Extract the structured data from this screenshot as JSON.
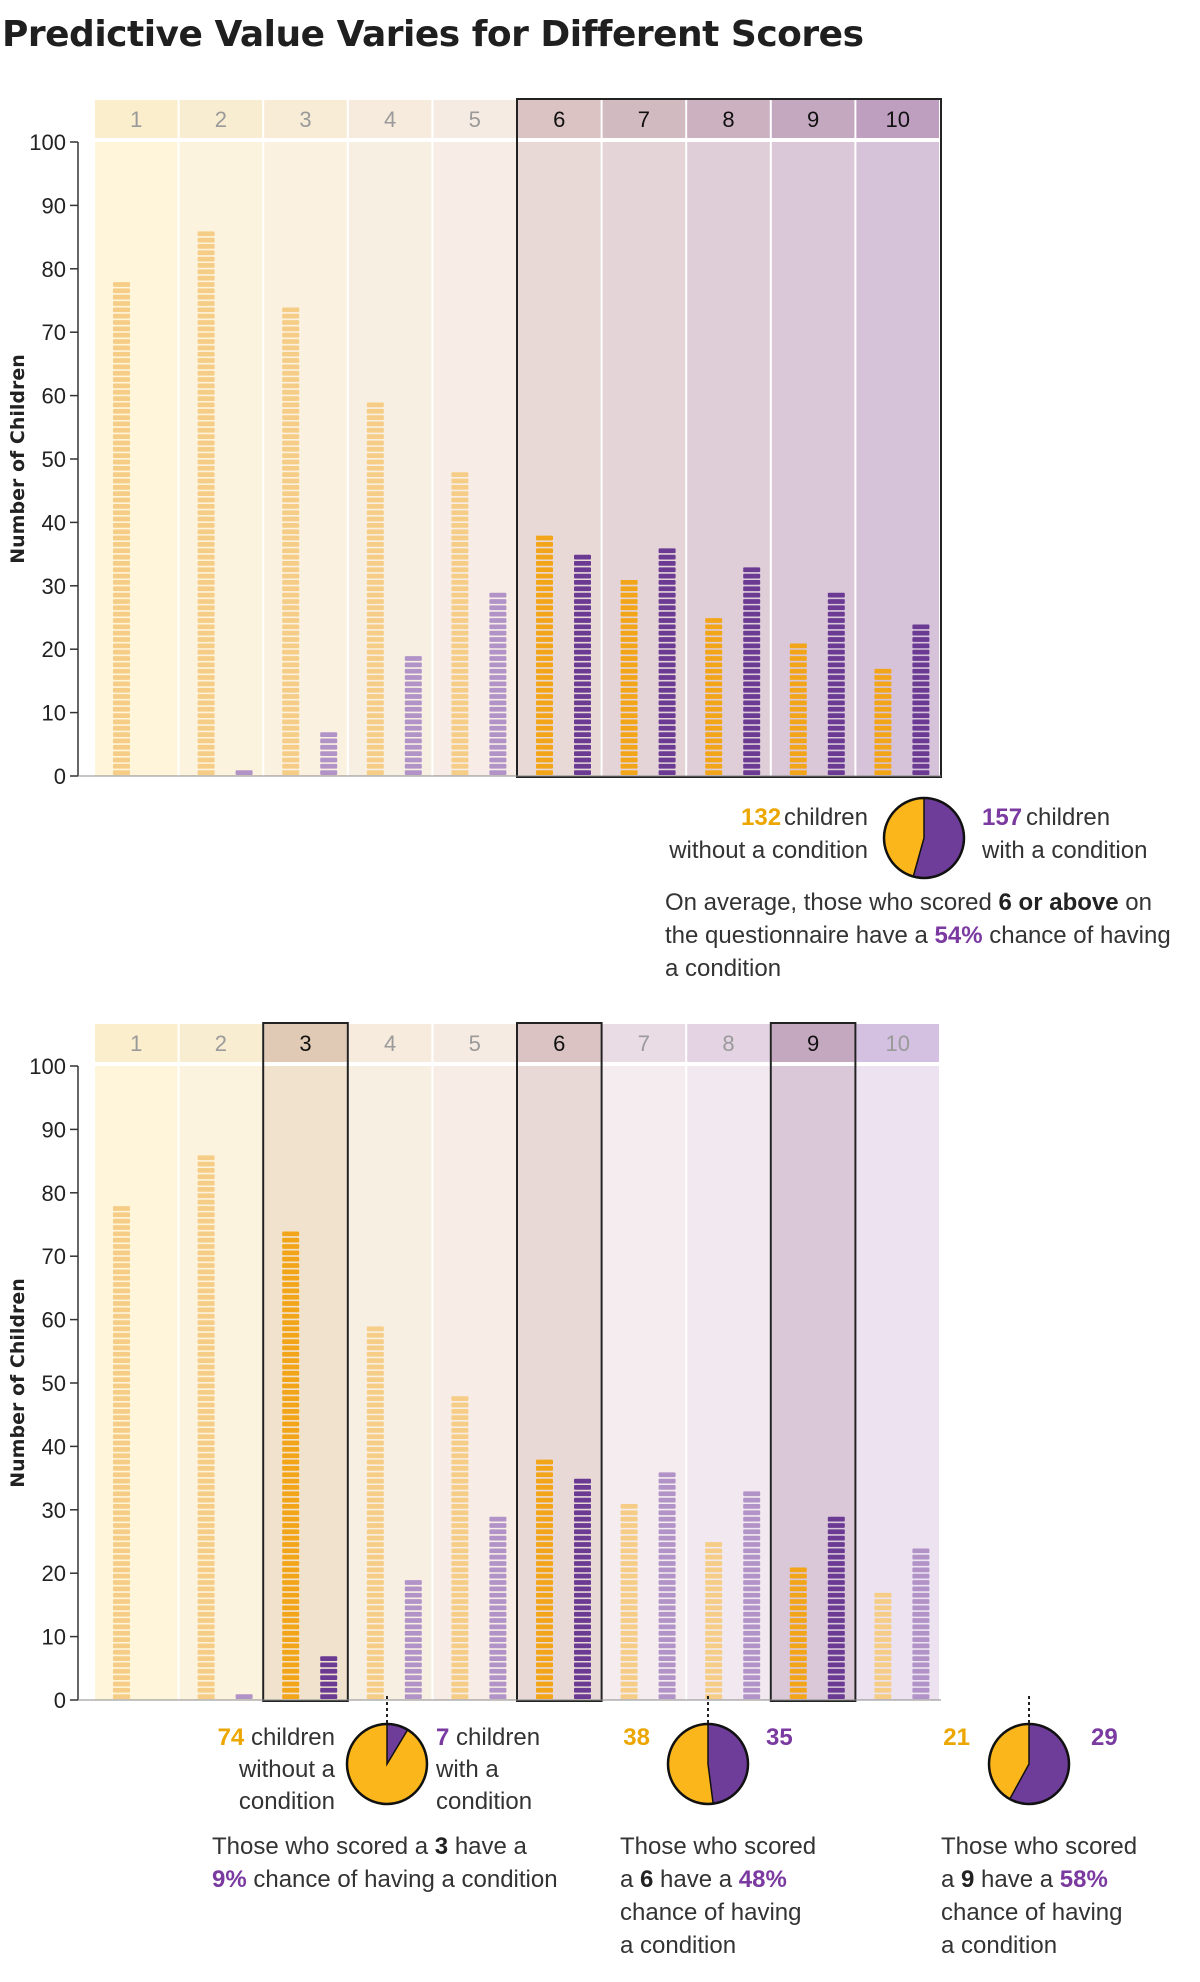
{
  "title": "Predictive Value Varies for Different Scores",
  "colors": {
    "without": "#f3a51a",
    "without_faded": "#f6cd86",
    "with": "#6b3a93",
    "with_faded": "#b293c8",
    "accent_orange": "#eba600",
    "accent_purple": "#7a3aa0",
    "pie_orange": "#fbb61b",
    "pie_purple": "#6e3d9a"
  },
  "chart_data": [
    {
      "type": "bar",
      "title": "",
      "xlabel": "",
      "ylabel": "Number of Children",
      "ylim": [
        0,
        100
      ],
      "yticks": [
        "0",
        "10",
        "20",
        "30",
        "40",
        "50",
        "60",
        "70",
        "80",
        "90",
        "100"
      ],
      "categories": [
        "1",
        "2",
        "3",
        "4",
        "5",
        "6",
        "7",
        "8",
        "9",
        "10"
      ],
      "series": [
        {
          "key": "without",
          "values": [
            78,
            86,
            74,
            59,
            48,
            38,
            31,
            25,
            21,
            17
          ]
        },
        {
          "key": "with",
          "values": [
            0,
            1,
            7,
            19,
            29,
            35,
            36,
            33,
            29,
            24
          ]
        }
      ],
      "highlighted": [
        "6",
        "7",
        "8",
        "9",
        "10"
      ],
      "annotation": {
        "without_count": "132",
        "without_text_1": "children",
        "without_text_2": "without a condition",
        "with_count": "157",
        "with_text_1": "children",
        "with_text_2": "with a condition",
        "without_share": 132,
        "with_share": 157,
        "summary_1a": "On average, those who scored ",
        "summary_1b": "6 or above",
        "summary_1c": " on",
        "summary_2a": "the questionnaire have a ",
        "summary_2b": "54%",
        "summary_2c": " chance of having",
        "summary_3": "a condition"
      }
    },
    {
      "type": "bar",
      "title": "",
      "xlabel": "",
      "ylabel": "Number of Children",
      "ylim": [
        0,
        100
      ],
      "yticks": [
        "0",
        "10",
        "20",
        "30",
        "40",
        "50",
        "60",
        "70",
        "80",
        "90",
        "100"
      ],
      "categories": [
        "1",
        "2",
        "3",
        "4",
        "5",
        "6",
        "7",
        "8",
        "9",
        "10"
      ],
      "series": [
        {
          "key": "without",
          "values": [
            78,
            86,
            74,
            59,
            48,
            38,
            31,
            25,
            21,
            17
          ]
        },
        {
          "key": "with",
          "values": [
            0,
            1,
            7,
            19,
            29,
            35,
            36,
            33,
            29,
            24
          ]
        }
      ],
      "highlighted": [
        "3",
        "6",
        "9"
      ],
      "annotations": [
        {
          "score": "3",
          "without_count": "74",
          "without_label_1": "children",
          "without_label_2": "without a",
          "without_label_3": "condition",
          "with_count": "7",
          "with_label_1": "children",
          "with_label_2": "with a",
          "with_label_3": "condition",
          "without_share": 74,
          "with_share": 7,
          "line_1a": "Those who scored a ",
          "line_1b": "3",
          "line_1c": " have a",
          "line_2a": "9%",
          "line_2b": " chance of having a condition"
        },
        {
          "score": "6",
          "without_count": "38",
          "with_count": "35",
          "without_share": 38,
          "with_share": 35,
          "line_1": "Those who scored",
          "line_2a": "a ",
          "line_2b": "6",
          "line_2c": " have a ",
          "line_2d": "48%",
          "line_3": "chance of having",
          "line_4": "a condition"
        },
        {
          "score": "9",
          "without_count": "21",
          "with_count": "29",
          "without_share": 21,
          "with_share": 29,
          "line_1": "Those who scored",
          "line_2a": "a ",
          "line_2b": "9",
          "line_2c": " have a ",
          "line_2d": "58%",
          "line_3": "chance of having",
          "line_4": "a condition"
        }
      ]
    }
  ]
}
